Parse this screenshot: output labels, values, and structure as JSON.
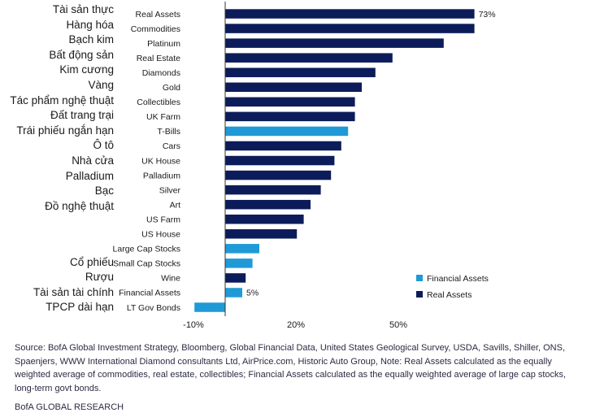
{
  "vietnamese_labels": [
    {
      "text": "Tài sản thực",
      "row": 0
    },
    {
      "text": "Hàng hóa",
      "row": 1
    },
    {
      "text": "Bạch kim",
      "row": 2
    },
    {
      "text": "Bất động sản",
      "row": 3
    },
    {
      "text": "Kim cương",
      "row": 4
    },
    {
      "text": "Vàng",
      "row": 5
    },
    {
      "text": "Tác phẩm nghệ thuật",
      "row": 6
    },
    {
      "text": "Đất trang trại",
      "row": 7
    },
    {
      "text": "Trái phiếu ngắn hạn",
      "row": 8
    },
    {
      "text": "Ô tô",
      "row": 9
    },
    {
      "text": "Nhà cửa",
      "row": 10
    },
    {
      "text": "Palladium",
      "row": 11
    },
    {
      "text": "Bạc",
      "row": 12
    },
    {
      "text": "Đồ nghệ thuật",
      "row": 13
    },
    {
      "text": "Cổ phiếu",
      "row": 16.7
    },
    {
      "text": "Rượu",
      "row": 17.7
    },
    {
      "text": "Tài sản tài chính",
      "row": 18.7
    },
    {
      "text": "TPCP dài hạn",
      "row": 19.7
    }
  ],
  "chart_data": {
    "type": "bar",
    "orientation": "horizontal",
    "categories": [
      "Real Assets",
      "Commodities",
      "Platinum",
      "Real Estate",
      "Diamonds",
      "Gold",
      "Collectibles",
      "UK Farm",
      "T-Bills",
      "Cars",
      "UK House",
      "Palladium",
      "Silver",
      "Art",
      "US Farm",
      "US House",
      "Large Cap Stocks",
      "Small Cap Stocks",
      "Wine",
      "Financial Assets",
      "LT Gov Bonds"
    ],
    "values": [
      73,
      73,
      64,
      49,
      44,
      40,
      38,
      38,
      36,
      34,
      32,
      31,
      28,
      25,
      23,
      21,
      10,
      8,
      6,
      5,
      -9
    ],
    "asset_class": [
      "real",
      "real",
      "real",
      "real",
      "real",
      "real",
      "real",
      "real",
      "financial",
      "real",
      "real",
      "real",
      "real",
      "real",
      "real",
      "real",
      "financial",
      "financial",
      "real",
      "financial",
      "financial"
    ],
    "data_labels": [
      {
        "index": 0,
        "text": "73%"
      },
      {
        "index": 19,
        "text": "5%"
      }
    ],
    "xticks": [
      {
        "value": -10,
        "label": "-10%"
      },
      {
        "value": 20,
        "label": "20%"
      },
      {
        "value": 50,
        "label": "50%"
      }
    ],
    "xlim": [
      -11,
      75
    ],
    "legend": {
      "placement": "bottom-right",
      "entries": [
        {
          "name": "Financial Assets",
          "key": "financial"
        },
        {
          "name": "Real Assets",
          "key": "real"
        }
      ]
    },
    "colors": {
      "real": "#0c1c5a",
      "financial": "#1f9ad6",
      "axis": "#333333"
    }
  },
  "source": {
    "text": "Source: BofA Global Investment Strategy, Bloomberg, Global Financial Data, United States Geological Survey, USDA, Savills, Shiller, ONS, Spaenjers, WWW International Diamond consultants Ltd, AirPrice.com, Historic Auto Group, Note: Real Assets calculated as the equally weighted average of commodities, real estate, collectibles; Financial Assets calculated as the equally weighted average of large cap stocks, long-term govt bonds.",
    "footer": "BofA GLOBAL RESEARCH"
  }
}
